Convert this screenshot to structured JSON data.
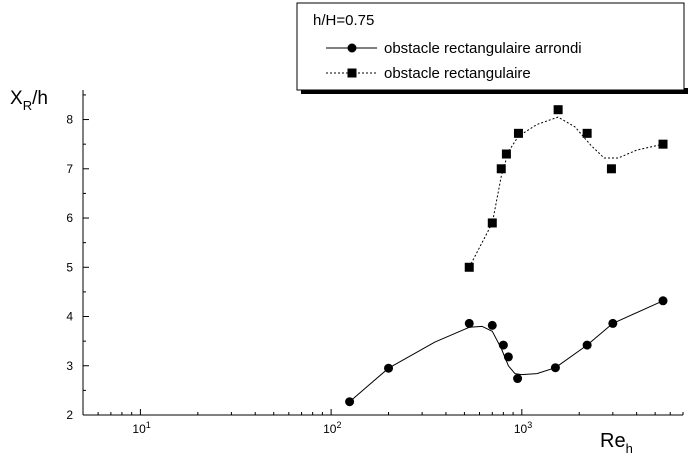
{
  "chart_data": {
    "type": "line",
    "x_scale": "log",
    "xlim": [
      5,
      7000
    ],
    "ylim": [
      2,
      8.6
    ],
    "x_ticks": [
      {
        "value": 10,
        "base": "10",
        "exp": "1"
      },
      {
        "value": 100,
        "base": "10",
        "exp": "2"
      },
      {
        "value": 1000,
        "base": "10",
        "exp": "3"
      }
    ],
    "y_ticks": [
      "2",
      "3",
      "4",
      "5",
      "6",
      "7",
      "8"
    ],
    "xlabel": {
      "main": "Re",
      "sub": "h"
    },
    "ylabel": {
      "main": "X",
      "sub": "R",
      "suffix": "/h"
    },
    "legend": {
      "title": "h/H=0.75",
      "placement": "top-right"
    },
    "grid": false,
    "series": [
      {
        "name": "obstacle rectangulaire arrondi",
        "marker": "circle",
        "line": "solid",
        "color": "#000000",
        "x": [
          125,
          200,
          530,
          700,
          800,
          850,
          950,
          1500,
          2200,
          3000,
          5500
        ],
        "y": [
          2.27,
          2.95,
          3.86,
          3.82,
          3.42,
          3.18,
          2.74,
          2.96,
          3.42,
          3.86,
          4.32
        ],
        "curve": [
          [
            125,
            2.27
          ],
          [
            200,
            2.95
          ],
          [
            350,
            3.48
          ],
          [
            530,
            3.78
          ],
          [
            620,
            3.8
          ],
          [
            700,
            3.7
          ],
          [
            780,
            3.35
          ],
          [
            850,
            3.0
          ],
          [
            920,
            2.84
          ],
          [
            1000,
            2.82
          ],
          [
            1200,
            2.84
          ],
          [
            1500,
            2.96
          ],
          [
            2200,
            3.42
          ],
          [
            3000,
            3.86
          ],
          [
            5500,
            4.32
          ]
        ]
      },
      {
        "name": "obstacle rectangulaire",
        "marker": "square",
        "line": "dotted",
        "color": "#000000",
        "x": [
          530,
          700,
          780,
          830,
          960,
          1550,
          2200,
          2950,
          5500
        ],
        "y": [
          5.0,
          5.9,
          7.0,
          7.3,
          7.72,
          8.2,
          7.72,
          7.0,
          7.5
        ],
        "curve": [
          [
            530,
            5.0
          ],
          [
            700,
            5.9
          ],
          [
            780,
            6.85
          ],
          [
            850,
            7.35
          ],
          [
            960,
            7.66
          ],
          [
            1200,
            7.9
          ],
          [
            1550,
            8.05
          ],
          [
            1900,
            7.85
          ],
          [
            2300,
            7.48
          ],
          [
            2700,
            7.22
          ],
          [
            3200,
            7.22
          ],
          [
            4000,
            7.38
          ],
          [
            5500,
            7.5
          ]
        ]
      }
    ]
  }
}
